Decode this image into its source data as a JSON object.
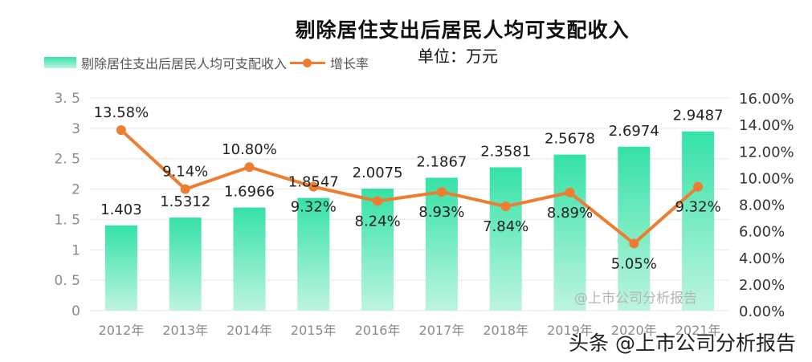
{
  "title": "剔除居住支出后居民人均可支配收入",
  "unit": "单位：万元",
  "legend": {
    "bar_label": "剔除居住支出后居民人均可支配收入",
    "line_label": "增长率"
  },
  "watermark": "@上市公司分析报告",
  "footer_mark": "头条 @上市公司分析报告",
  "colors": {
    "bar_top": "#35e2a6",
    "bar_bottom": "#bdf5df",
    "line": "#ed7d31",
    "grid": "#ececec",
    "axis_text": "#8a8a8a",
    "label_text": "#222222"
  },
  "chart_data": {
    "type": "bar+line",
    "title": "剔除居住支出后居民人均可支配收入",
    "subtitle": "单位：万元",
    "categories": [
      "2012年",
      "2013年",
      "2014年",
      "2015年",
      "2016年",
      "2017年",
      "2018年",
      "2019年",
      "2020年",
      "2021年"
    ],
    "series": [
      {
        "name": "剔除居住支出后居民人均可支配收入",
        "type": "bar",
        "axis": "left",
        "values": [
          1.403,
          1.5312,
          1.6966,
          1.8547,
          2.0075,
          2.1867,
          2.3581,
          2.5678,
          2.6974,
          2.9487
        ],
        "labels": [
          "1.403",
          "1.5312",
          "1.6966",
          "1.8547",
          "2.0075",
          "2.1867",
          "2.3581",
          "2.5678",
          "2.6974",
          "2.9487"
        ]
      },
      {
        "name": "增长率",
        "type": "line",
        "axis": "right",
        "values": [
          13.58,
          9.14,
          10.8,
          9.32,
          8.24,
          8.93,
          7.84,
          8.89,
          5.05,
          9.32
        ],
        "labels": [
          "13.58%",
          "9.14%",
          "10.80%",
          "9.32%",
          "8.24%",
          "8.93%",
          "7.84%",
          "8.89%",
          "5.05%",
          "9.32%"
        ],
        "label_pos": [
          "above",
          "above",
          "above",
          "below",
          "below",
          "below",
          "below",
          "below",
          "below",
          "below"
        ]
      }
    ],
    "left_axis": {
      "ylim": [
        0,
        3.5
      ],
      "ticks": [
        "0",
        "0. 5",
        "1",
        "1. 5",
        "2",
        "2. 5",
        "3",
        "3. 5"
      ]
    },
    "right_axis": {
      "ylim": [
        0,
        16
      ],
      "ticks": [
        "0.00%",
        "2.00%",
        "4.00%",
        "6.00%",
        "8.00%",
        "10.00%",
        "12.00%",
        "14.00%",
        "16.00%"
      ]
    },
    "grid": true,
    "legend_position": "top-left"
  }
}
